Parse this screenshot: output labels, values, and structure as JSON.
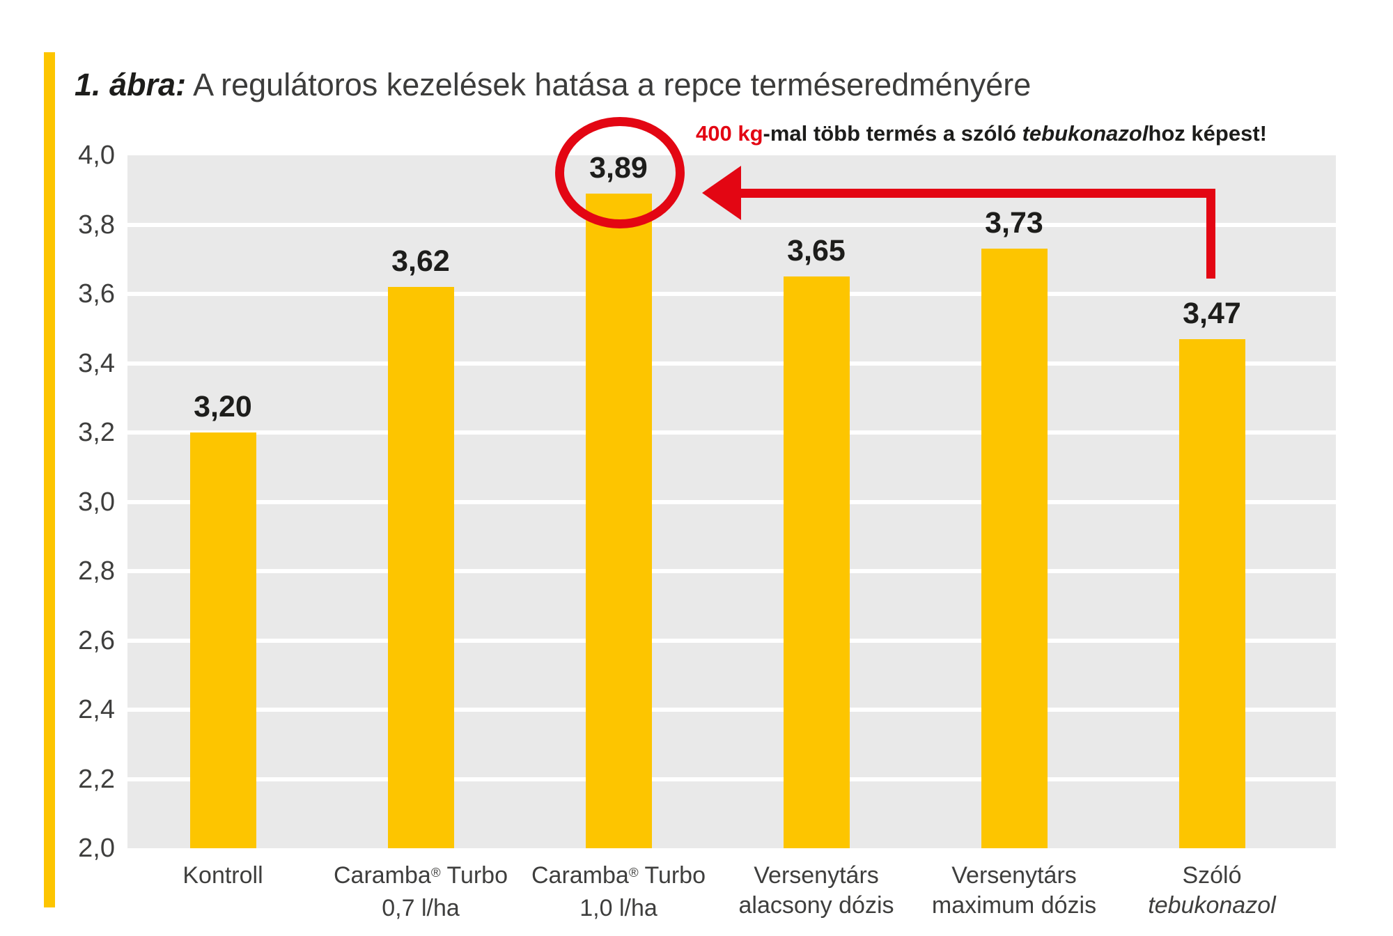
{
  "title": {
    "prefix": "1. ábra:",
    "rest": " A regulátoros kezelések hatása a repce terméseredményére"
  },
  "annotation": {
    "highlight": "400 kg",
    "mid": "-mal több termés a szóló ",
    "italic": "tebukonazol",
    "suffix": "hoz képest!"
  },
  "colors": {
    "bar_yellow": "#FDC500",
    "plot_background": "#E9E9E9",
    "annotation_red": "#E30613",
    "text_dark": "#1D1D1B",
    "text_gray": "#3E3E3D"
  },
  "chart_data": {
    "type": "bar",
    "title": "1. ábra: A regulátoros kezelések hatása a repce terméseredményére",
    "categories": [
      {
        "line1": "Kontroll",
        "line2": "",
        "line2_italic": false
      },
      {
        "line1": "Caramba® Turbo",
        "line2": "0,7 l/ha",
        "line2_italic": false
      },
      {
        "line1": "Caramba® Turbo",
        "line2": "1,0 l/ha",
        "line2_italic": false
      },
      {
        "line1": "Versenytárs",
        "line2": "alacsony dózis",
        "line2_italic": false
      },
      {
        "line1": "Versenytárs",
        "line2": "maximum dózis",
        "line2_italic": false
      },
      {
        "line1": "Szóló",
        "line2": "tebukonazol",
        "line2_italic": true
      }
    ],
    "values": [
      3.2,
      3.62,
      3.89,
      3.65,
      3.73,
      3.47
    ],
    "value_labels": [
      "3,20",
      "3,62",
      "3,89",
      "3,65",
      "3,73",
      "3,47"
    ],
    "ylim": [
      2.0,
      4.0
    ],
    "ytick_step": 0.2,
    "ytick_labels": [
      "4,0",
      "3,8",
      "3,6",
      "3,4",
      "3,2",
      "3,0",
      "2,8",
      "2,6",
      "2,4",
      "2,2",
      "2,0"
    ],
    "grid": true,
    "legend": false,
    "xlabel": "",
    "ylabel": "",
    "highlighted_bar_index": 2,
    "annotation_source_bar_index": 5
  }
}
